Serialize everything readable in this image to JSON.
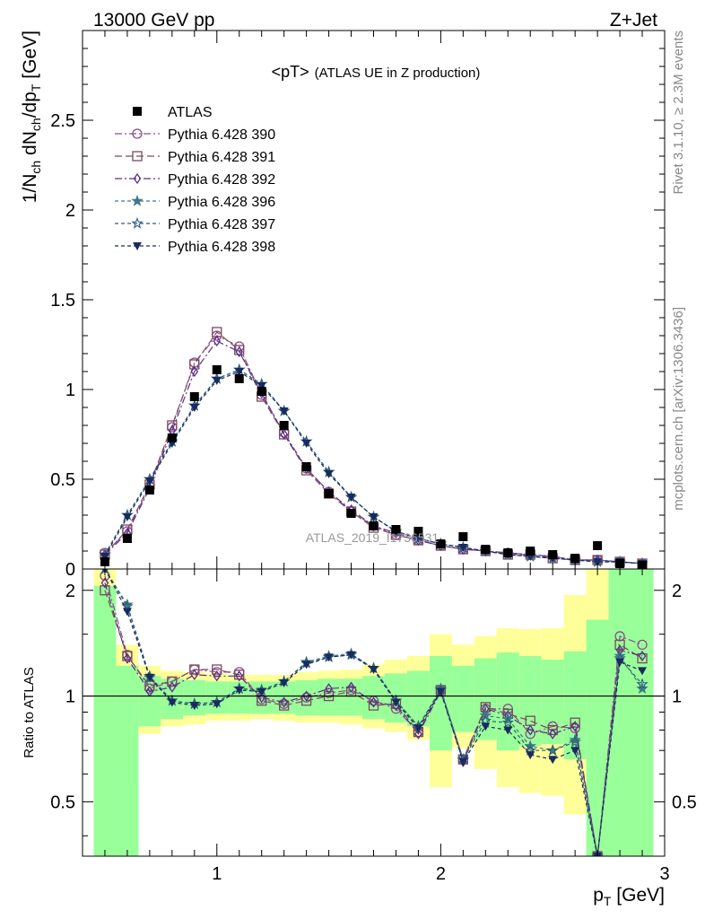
{
  "header": {
    "left": "13000 GeV pp",
    "right": "Z+Jet"
  },
  "side_labels": {
    "top": "Rivet 3.1.10, ≥ 2.3M events",
    "bottom": "mcplots.cern.ch [arXiv:1306.3436]"
  },
  "colors": {
    "band_inner": "#99ff99",
    "band_outer": "#ffff99",
    "data": "#000000"
  },
  "chart_data": [
    {
      "type": "line",
      "panel": "main",
      "title_main": "<pT>",
      "title_sub": "(ATLAS UE in Z production)",
      "ylabel": "1/N_ch dN_ch/dp_T [GeV]",
      "analysis_label": "ATLAS_2019_I1736531",
      "xlim": [
        0.4,
        3.0
      ],
      "ylim": [
        0,
        3.0
      ],
      "yticks": [
        0,
        0.5,
        1,
        1.5,
        2,
        2.5
      ],
      "ytick_labels": [
        "0",
        "0.5",
        "1",
        "1.5",
        "2",
        "2.5"
      ],
      "legend_position": "top-left",
      "x": [
        0.5,
        0.6,
        0.7,
        0.8,
        0.9,
        1.0,
        1.1,
        1.2,
        1.3,
        1.4,
        1.5,
        1.6,
        1.7,
        1.8,
        1.9,
        2.0,
        2.1,
        2.2,
        2.3,
        2.4,
        2.5,
        2.6,
        2.7,
        2.8,
        2.9
      ],
      "data": {
        "name": "ATLAS",
        "values": [
          0.04,
          0.17,
          0.44,
          0.73,
          0.96,
          1.11,
          1.06,
          0.99,
          0.8,
          0.57,
          0.42,
          0.31,
          0.24,
          0.22,
          0.21,
          0.14,
          0.18,
          0.11,
          0.09,
          0.1,
          0.08,
          0.06,
          0.13,
          0.03,
          0.02
        ]
      },
      "series": [
        {
          "name": "Pythia 6.428 390",
          "color": "#8c4d8c",
          "marker": "circle-open",
          "dash": "8,3,2,3",
          "values": [
            0.09,
            0.21,
            0.46,
            0.79,
            1.15,
            1.3,
            1.24,
            0.97,
            0.76,
            0.56,
            0.43,
            0.32,
            0.24,
            0.19,
            0.16,
            0.13,
            0.11,
            0.1,
            0.09,
            0.08,
            0.07,
            0.05,
            0.05,
            0.04,
            0.03
          ]
        },
        {
          "name": "Pythia 6.428 391",
          "color": "#7a4a5e",
          "marker": "square-open",
          "dash": "8,4",
          "values": [
            0.08,
            0.22,
            0.47,
            0.8,
            1.14,
            1.32,
            1.22,
            0.96,
            0.75,
            0.55,
            0.42,
            0.32,
            0.23,
            0.19,
            0.16,
            0.13,
            0.11,
            0.1,
            0.08,
            0.08,
            0.06,
            0.05,
            0.05,
            0.04,
            0.03
          ]
        },
        {
          "name": "Pythia 6.428 392",
          "color": "#5b2f8c",
          "marker": "diamond-open",
          "dash": "8,3,2,3",
          "values": [
            0.08,
            0.2,
            0.45,
            0.77,
            1.1,
            1.27,
            1.21,
            0.98,
            0.75,
            0.56,
            0.43,
            0.33,
            0.24,
            0.2,
            0.16,
            0.13,
            0.11,
            0.1,
            0.09,
            0.08,
            0.07,
            0.05,
            0.05,
            0.04,
            0.03
          ]
        },
        {
          "name": "Pythia 6.428 396",
          "color": "#3f7a8a",
          "marker": "star-filled",
          "dash": "4,3",
          "values": [
            0.08,
            0.3,
            0.5,
            0.71,
            0.91,
            1.06,
            1.11,
            1.03,
            0.88,
            0.71,
            0.54,
            0.4,
            0.29,
            0.21,
            0.17,
            0.14,
            0.12,
            0.1,
            0.08,
            0.07,
            0.06,
            0.05,
            0.04,
            0.04,
            0.03
          ]
        },
        {
          "name": "Pythia 6.428 397",
          "color": "#2f5f7a",
          "marker": "star-open",
          "dash": "4,3",
          "values": [
            0.08,
            0.3,
            0.5,
            0.71,
            0.91,
            1.06,
            1.11,
            1.03,
            0.88,
            0.71,
            0.54,
            0.4,
            0.29,
            0.21,
            0.17,
            0.14,
            0.12,
            0.1,
            0.08,
            0.07,
            0.06,
            0.05,
            0.04,
            0.04,
            0.03
          ]
        },
        {
          "name": "Pythia 6.428 398",
          "color": "#1a2a5e",
          "marker": "triangle-down-filled",
          "dash": "4,3",
          "values": [
            0.07,
            0.29,
            0.49,
            0.7,
            0.9,
            1.05,
            1.1,
            1.02,
            0.88,
            0.7,
            0.53,
            0.4,
            0.29,
            0.21,
            0.17,
            0.14,
            0.12,
            0.1,
            0.08,
            0.07,
            0.06,
            0.05,
            0.04,
            0.04,
            0.03
          ]
        }
      ]
    },
    {
      "type": "line",
      "panel": "ratio",
      "ylabel": "Ratio to ATLAS",
      "xlabel": "p_T [GeV]",
      "xlim": [
        0.4,
        3.0
      ],
      "ylim": [
        0.35,
        2.3
      ],
      "xticks": [
        1,
        2,
        3
      ],
      "xtick_labels": [
        "1",
        "2",
        "3"
      ],
      "yticks": [
        0.5,
        1,
        2
      ],
      "ytick_labels": [
        "0.5",
        "1",
        "2"
      ],
      "reference_line": 1,
      "band_edges": [
        0.45,
        0.55,
        0.65,
        0.75,
        0.85,
        0.95,
        1.05,
        1.15,
        1.25,
        1.35,
        1.45,
        1.55,
        1.65,
        1.75,
        1.85,
        1.95,
        2.05,
        2.15,
        2.25,
        2.35,
        2.45,
        2.55,
        2.65,
        2.75,
        2.85,
        2.95
      ],
      "band_inner_low": [
        0.35,
        0.35,
        0.82,
        0.86,
        0.88,
        0.89,
        0.89,
        0.89,
        0.89,
        0.88,
        0.88,
        0.88,
        0.86,
        0.84,
        0.82,
        0.7,
        0.79,
        0.75,
        0.7,
        0.72,
        0.73,
        0.66,
        0.35,
        0.35,
        0.35
      ],
      "band_inner_high": [
        2.06,
        1.22,
        1.14,
        1.12,
        1.11,
        1.1,
        1.1,
        1.1,
        1.1,
        1.11,
        1.12,
        1.12,
        1.14,
        1.16,
        1.18,
        1.3,
        1.22,
        1.28,
        1.33,
        1.3,
        1.27,
        1.34,
        1.65,
        2.3,
        2.3
      ],
      "band_outer_low": [
        0.35,
        0.6,
        0.78,
        0.82,
        0.83,
        0.85,
        0.85,
        0.86,
        0.85,
        0.84,
        0.84,
        0.83,
        0.81,
        0.79,
        0.75,
        0.55,
        0.71,
        0.62,
        0.55,
        0.53,
        0.52,
        0.46,
        0.35,
        0.35,
        0.35
      ],
      "band_outer_high": [
        2.3,
        1.4,
        1.22,
        1.18,
        1.17,
        1.16,
        1.15,
        1.15,
        1.15,
        1.17,
        1.18,
        1.19,
        1.23,
        1.27,
        1.3,
        1.5,
        1.4,
        1.48,
        1.56,
        1.55,
        1.56,
        1.94,
        2.3,
        2.3,
        2.3
      ],
      "x": [
        0.5,
        0.6,
        0.7,
        0.8,
        0.9,
        1.0,
        1.1,
        1.2,
        1.3,
        1.4,
        1.5,
        1.6,
        1.7,
        1.8,
        1.9,
        2.0,
        2.1,
        2.2,
        2.3,
        2.4,
        2.5,
        2.6,
        2.7,
        2.8,
        2.9
      ],
      "series": [
        {
          "name": "Pythia 6.428 390",
          "color": "#8c4d8c",
          "marker": "circle-open",
          "dash": "8,3,2,3",
          "values": [
            2.2,
            1.31,
            1.05,
            1.1,
            1.19,
            1.17,
            1.17,
            0.98,
            0.95,
            0.99,
            1.02,
            1.04,
            0.97,
            0.92,
            0.79,
            1.04,
            0.66,
            0.92,
            0.92,
            0.78,
            0.82,
            0.81,
            0.35,
            1.48,
            1.4
          ]
        },
        {
          "name": "Pythia 6.428 391",
          "color": "#7a4a5e",
          "marker": "square-open",
          "dash": "8,4",
          "values": [
            2.0,
            1.3,
            1.07,
            1.1,
            1.19,
            1.19,
            1.15,
            0.97,
            0.94,
            0.97,
            1.0,
            1.03,
            0.94,
            0.95,
            0.79,
            1.04,
            0.66,
            0.93,
            0.89,
            0.85,
            0.8,
            0.84,
            0.35,
            1.4,
            1.28
          ]
        },
        {
          "name": "Pythia 6.428 392",
          "color": "#5b2f8c",
          "marker": "diamond-open",
          "dash": "8,3,2,3",
          "values": [
            2.1,
            1.28,
            1.03,
            1.06,
            1.15,
            1.14,
            1.14,
            0.99,
            0.96,
            1.0,
            1.05,
            1.06,
            0.96,
            0.94,
            0.78,
            1.03,
            0.65,
            0.92,
            0.88,
            0.8,
            0.78,
            0.82,
            0.35,
            1.35,
            1.3
          ]
        },
        {
          "name": "Pythia 6.428 396",
          "color": "#3f7a8a",
          "marker": "star-filled",
          "dash": "4,3",
          "values": [
            2.3,
            1.82,
            1.14,
            0.97,
            0.95,
            0.96,
            1.05,
            1.04,
            1.1,
            1.25,
            1.3,
            1.32,
            1.2,
            0.97,
            0.82,
            1.05,
            0.66,
            0.88,
            0.86,
            0.72,
            0.7,
            0.75,
            0.35,
            1.3,
            1.05
          ]
        },
        {
          "name": "Pythia 6.428 397",
          "color": "#2f5f7a",
          "marker": "star-open",
          "dash": "4,3",
          "values": [
            2.3,
            1.8,
            1.13,
            0.97,
            0.95,
            0.96,
            1.05,
            1.04,
            1.1,
            1.24,
            1.29,
            1.31,
            1.2,
            0.97,
            0.82,
            1.04,
            0.66,
            0.85,
            0.84,
            0.7,
            0.7,
            0.74,
            0.35,
            1.28,
            1.08
          ]
        },
        {
          "name": "Pythia 6.428 398",
          "color": "#1a2a5e",
          "marker": "triangle-down-filled",
          "dash": "4,3",
          "values": [
            2.3,
            1.74,
            1.13,
            0.96,
            0.94,
            0.95,
            1.04,
            1.03,
            1.09,
            1.23,
            1.29,
            1.31,
            1.19,
            0.96,
            0.81,
            1.03,
            0.65,
            0.82,
            0.8,
            0.68,
            0.66,
            0.7,
            0.35,
            1.25,
            1.18
          ]
        }
      ]
    }
  ]
}
